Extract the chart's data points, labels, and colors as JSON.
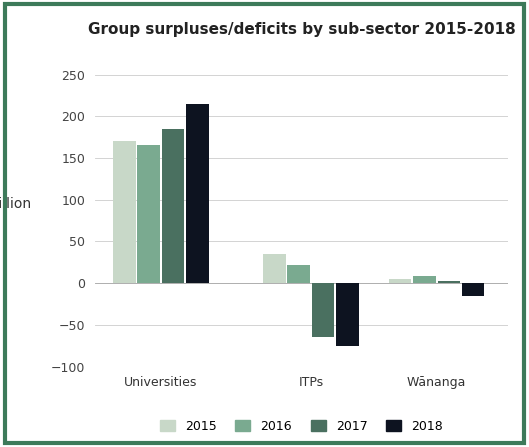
{
  "title": "Group surpluses/deficits by sub-sector 2015-2018",
  "ylabel": "$million",
  "categories": [
    "Universities",
    "ITPs",
    "Wānanga"
  ],
  "years": [
    "2015",
    "2016",
    "2017",
    "2018"
  ],
  "values": {
    "Universities": [
      170,
      165,
      185,
      215
    ],
    "ITPs": [
      35,
      22,
      -65,
      -75
    ],
    "Wānanga": [
      5,
      8,
      2,
      -15
    ]
  },
  "colors": {
    "2015": "#c8d8c8",
    "2016": "#7aaa90",
    "2017": "#4a7060",
    "2018": "#0d1320"
  },
  "ylim": [
    -100,
    275
  ],
  "yticks": [
    -100,
    -50,
    0,
    50,
    100,
    150,
    200,
    250
  ],
  "background_color": "#ffffff",
  "border_color": "#3d7a5a",
  "title_fontsize": 11,
  "label_fontsize": 10,
  "tick_fontsize": 9,
  "legend_fontsize": 9,
  "bar_width": 0.12,
  "x_positions": [
    0.25,
    1.05,
    1.72
  ]
}
